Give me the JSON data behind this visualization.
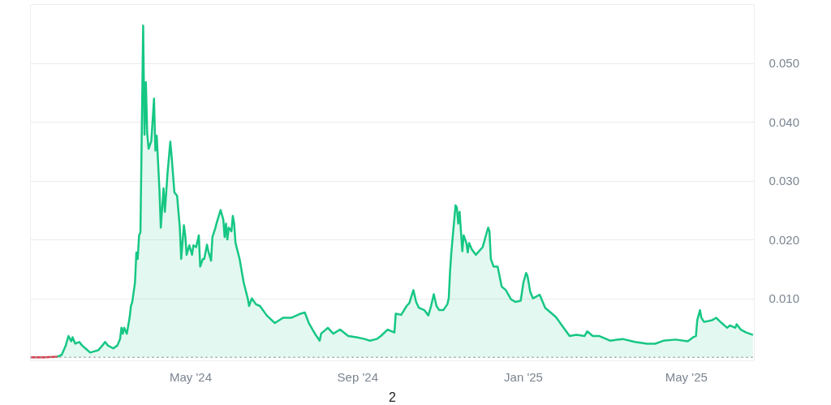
{
  "chart_data": {
    "type": "area",
    "xlim": [
      "2024-01-04",
      "2025-06-20"
    ],
    "xticks": [
      {
        "value": "2024-05-01",
        "label": "May '24"
      },
      {
        "value": "2024-09-01",
        "label": "Sep '24"
      },
      {
        "value": "2025-01-01",
        "label": "Jan '25"
      },
      {
        "value": "2025-05-01",
        "label": "May '25"
      }
    ],
    "ylim": [
      -0.0005,
      0.06
    ],
    "yticks": [
      {
        "value": 0.01,
        "label": "0.010"
      },
      {
        "value": 0.02,
        "label": "0.020"
      },
      {
        "value": 0.03,
        "label": "0.030"
      },
      {
        "value": 0.04,
        "label": "0.040"
      },
      {
        "value": 0.05,
        "label": "0.050"
      }
    ],
    "grid": "y",
    "ref_lines": [
      {
        "axis": "y",
        "value": 0.0001,
        "color": "#9e9e9e",
        "line_style": "dotted"
      }
    ],
    "annotations": [
      "2"
    ],
    "series": [
      {
        "type": "line",
        "color": "#d93a4a",
        "x": [
          "2024-01-04",
          "2024-01-14",
          "2024-01-24"
        ],
        "values": [
          0.0001,
          0.0001,
          0.0002
        ]
      },
      {
        "color": "#16c784",
        "x": [
          "2024-01-24",
          "2024-01-27",
          "2024-01-30",
          "2024-02-01",
          "2024-02-03",
          "2024-02-04",
          "2024-02-06",
          "2024-02-09",
          "2024-02-11",
          "2024-02-14",
          "2024-02-17",
          "2024-02-20",
          "2024-02-23",
          "2024-02-26",
          "2024-02-28",
          "2024-03-01",
          "2024-03-05",
          "2024-03-08",
          "2024-03-10",
          "2024-03-11",
          "2024-03-12",
          "2024-03-13",
          "2024-03-15",
          "2024-03-17",
          "2024-03-18",
          "2024-03-19",
          "2024-03-21",
          "2024-03-22",
          "2024-03-23",
          "2024-03-24",
          "2024-03-25",
          "2024-03-27",
          "2024-03-28",
          "2024-03-29",
          "2024-03-30",
          "2024-03-31",
          "2024-04-02",
          "2024-04-04",
          "2024-04-05",
          "2024-04-06",
          "2024-04-08",
          "2024-04-09",
          "2024-04-11",
          "2024-04-12",
          "2024-04-14",
          "2024-04-16",
          "2024-04-17",
          "2024-04-19",
          "2024-04-21",
          "2024-04-23",
          "2024-04-24",
          "2024-04-26",
          "2024-04-27",
          "2024-04-28",
          "2024-04-30",
          "2024-05-02",
          "2024-05-03",
          "2024-05-05",
          "2024-05-07",
          "2024-05-08",
          "2024-05-10",
          "2024-05-11",
          "2024-05-13",
          "2024-05-14",
          "2024-05-16",
          "2024-05-17",
          "2024-05-19",
          "2024-05-20",
          "2024-05-23",
          "2024-05-25",
          "2024-05-26",
          "2024-05-27",
          "2024-05-28",
          "2024-05-29",
          "2024-05-31",
          "2024-06-01",
          "2024-06-02",
          "2024-06-03",
          "2024-06-06",
          "2024-06-09",
          "2024-06-12",
          "2024-06-13",
          "2024-06-15",
          "2024-06-18",
          "2024-06-21",
          "2024-06-26",
          "2024-07-02",
          "2024-07-08",
          "2024-07-14",
          "2024-07-21",
          "2024-07-24",
          "2024-07-27",
          "2024-08-01",
          "2024-08-04",
          "2024-08-05",
          "2024-08-10",
          "2024-08-14",
          "2024-08-19",
          "2024-08-25",
          "2024-08-31",
          "2024-09-06",
          "2024-09-10",
          "2024-09-15",
          "2024-09-18",
          "2024-09-23",
          "2024-09-28",
          "2024-09-29",
          "2024-10-03",
          "2024-10-07",
          "2024-10-09",
          "2024-10-12",
          "2024-10-14",
          "2024-10-16",
          "2024-10-20",
          "2024-10-23",
          "2024-10-25",
          "2024-10-27",
          "2024-10-29",
          "2024-10-31",
          "2024-11-03",
          "2024-11-06",
          "2024-11-07",
          "2024-11-08",
          "2024-11-09",
          "2024-11-12",
          "2024-11-13",
          "2024-11-14",
          "2024-11-15",
          "2024-11-17",
          "2024-11-18",
          "2024-11-20",
          "2024-11-21",
          "2024-11-22",
          "2024-11-24",
          "2024-11-27",
          "2024-12-02",
          "2024-12-06",
          "2024-12-07",
          "2024-12-08",
          "2024-12-10",
          "2024-12-13",
          "2024-12-16",
          "2024-12-19",
          "2024-12-23",
          "2024-12-26",
          "2024-12-30",
          "2025-01-01",
          "2025-01-03",
          "2025-01-04",
          "2025-01-06",
          "2025-01-08",
          "2025-01-13",
          "2025-01-17",
          "2025-01-21",
          "2025-01-25",
          "2025-01-30",
          "2025-02-04",
          "2025-02-09",
          "2025-02-15",
          "2025-02-17",
          "2025-02-21",
          "2025-02-26",
          "2025-03-06",
          "2025-03-15",
          "2025-03-24",
          "2025-04-02",
          "2025-04-08",
          "2025-04-14",
          "2025-04-23",
          "2025-05-02",
          "2025-05-06",
          "2025-05-08",
          "2025-05-09",
          "2025-05-11",
          "2025-05-12",
          "2025-05-14",
          "2025-05-20",
          "2025-05-23",
          "2025-05-27",
          "2025-05-31",
          "2025-06-02",
          "2025-06-06",
          "2025-06-07",
          "2025-06-10",
          "2025-06-14",
          "2025-06-19"
        ],
        "values": [
          0.0002,
          0.0005,
          0.0021,
          0.0037,
          0.0028,
          0.0035,
          0.0024,
          0.0027,
          0.0021,
          0.0015,
          0.0009,
          0.0011,
          0.0013,
          0.0021,
          0.0027,
          0.0021,
          0.0016,
          0.0021,
          0.0032,
          0.0051,
          0.0041,
          0.0051,
          0.0041,
          0.0068,
          0.0088,
          0.0095,
          0.0128,
          0.0179,
          0.0168,
          0.0208,
          0.0213,
          0.0564,
          0.0379,
          0.0468,
          0.0381,
          0.0355,
          0.0368,
          0.044,
          0.0352,
          0.0377,
          0.0285,
          0.0221,
          0.0288,
          0.0248,
          0.0315,
          0.0367,
          0.0341,
          0.0281,
          0.0275,
          0.0221,
          0.0168,
          0.0225,
          0.0208,
          0.0175,
          0.0191,
          0.0175,
          0.0191,
          0.0188,
          0.0208,
          0.0155,
          0.0168,
          0.0168,
          0.0192,
          0.0181,
          0.0165,
          0.0205,
          0.0219,
          0.0228,
          0.0251,
          0.0235,
          0.0205,
          0.0228,
          0.0201,
          0.0221,
          0.0215,
          0.0241,
          0.0228,
          0.0195,
          0.0168,
          0.0128,
          0.0101,
          0.0088,
          0.0101,
          0.0091,
          0.0088,
          0.0072,
          0.0059,
          0.0068,
          0.0068,
          0.0075,
          0.0077,
          0.0059,
          0.0039,
          0.0029,
          0.0041,
          0.0051,
          0.0041,
          0.0048,
          0.0037,
          0.0035,
          0.0032,
          0.0029,
          0.0032,
          0.0037,
          0.0048,
          0.0043,
          0.0075,
          0.0073,
          0.0088,
          0.0093,
          0.0115,
          0.0095,
          0.0085,
          0.0081,
          0.0072,
          0.0088,
          0.0108,
          0.0088,
          0.0081,
          0.0081,
          0.0091,
          0.0101,
          0.0148,
          0.0181,
          0.0259,
          0.0255,
          0.0228,
          0.0248,
          0.0181,
          0.0208,
          0.0195,
          0.0179,
          0.0195,
          0.0184,
          0.0175,
          0.0188,
          0.0221,
          0.0215,
          0.0168,
          0.0155,
          0.0155,
          0.0121,
          0.0115,
          0.0099,
          0.0095,
          0.0097,
          0.0128,
          0.0144,
          0.0139,
          0.0112,
          0.0101,
          0.0107,
          0.0085,
          0.0077,
          0.0069,
          0.0053,
          0.0037,
          0.0039,
          0.0037,
          0.0045,
          0.0037,
          0.0037,
          0.0029,
          0.0032,
          0.0027,
          0.0024,
          0.0024,
          0.0029,
          0.0031,
          0.0028,
          0.0035,
          0.0037,
          0.0064,
          0.0081,
          0.0068,
          0.0061,
          0.0064,
          0.0068,
          0.0059,
          0.0051,
          0.0055,
          0.0051,
          0.0057,
          0.0048,
          0.0043,
          0.0039
        ]
      }
    ]
  }
}
